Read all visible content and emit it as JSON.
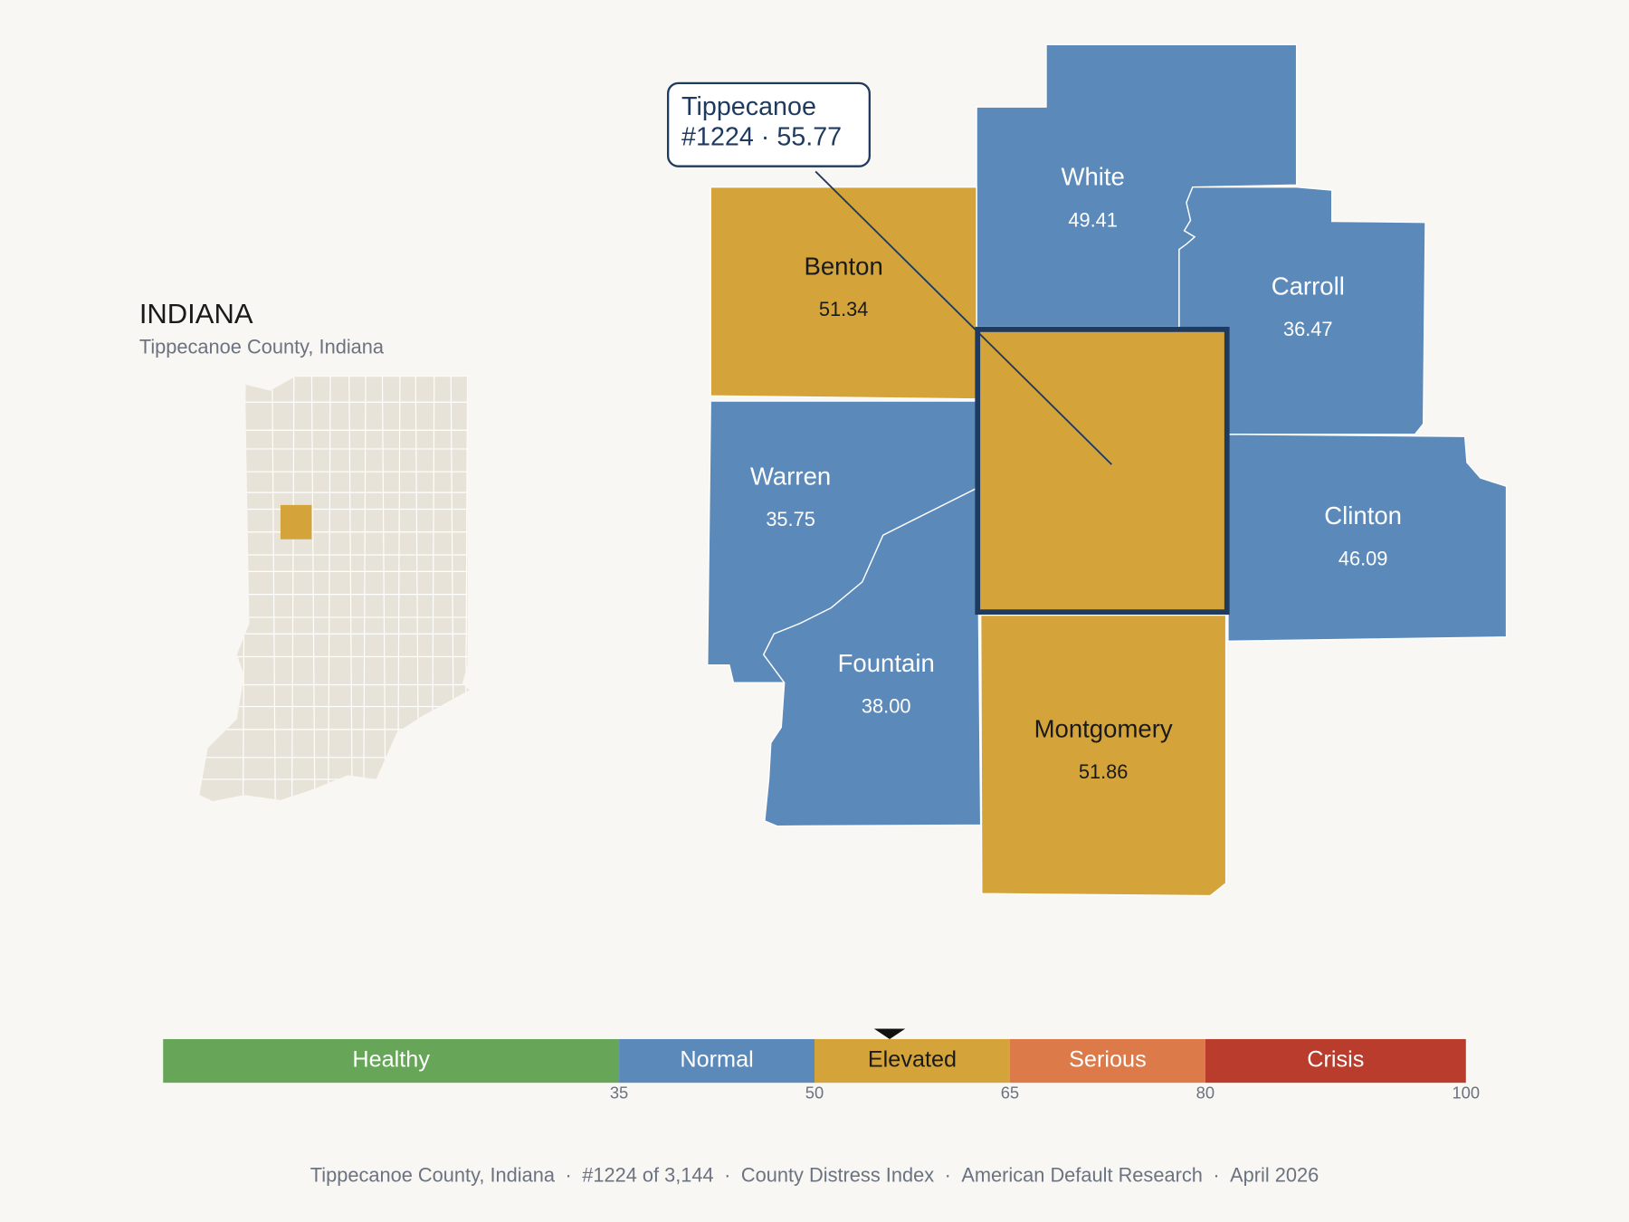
{
  "title": "INDIANA",
  "subtitle": "Tippecanoe County, Indiana",
  "highlight": {
    "name": "Tippecanoe",
    "detail": "#1224 · 55.77",
    "color": "#d4a43a",
    "border": "#1f3a5f"
  },
  "counties": [
    {
      "name": "White",
      "score": "49.41",
      "color": "#5b8aba",
      "text_color": "#ffffff"
    },
    {
      "name": "Carroll",
      "score": "36.47",
      "color": "#5b8aba",
      "text_color": "#ffffff"
    },
    {
      "name": "Clinton",
      "score": "46.09",
      "color": "#5b8aba",
      "text_color": "#ffffff"
    },
    {
      "name": "Benton",
      "score": "51.34",
      "color": "#d4a43a",
      "text_color": "#1a1a1a"
    },
    {
      "name": "Warren",
      "score": "35.75",
      "color": "#5b8aba",
      "text_color": "#ffffff"
    },
    {
      "name": "Fountain",
      "score": "38.00",
      "color": "#5b8aba",
      "text_color": "#ffffff"
    },
    {
      "name": "Montgomery",
      "score": "51.86",
      "color": "#d4a43a",
      "text_color": "#1a1a1a"
    }
  ],
  "scale": {
    "range": [
      0,
      100
    ],
    "ticks": [
      35,
      50,
      65,
      80,
      100
    ],
    "marker": 55.77,
    "bands": [
      {
        "label": "Healthy",
        "color": "#67a659",
        "text_color": "#ffffff"
      },
      {
        "label": "Normal",
        "color": "#5b8aba",
        "text_color": "#ffffff"
      },
      {
        "label": "Elevated",
        "color": "#d4a43a",
        "text_color": "#1a1a1a"
      },
      {
        "label": "Serious",
        "color": "#dc7a4a",
        "text_color": "#ffffff"
      },
      {
        "label": "Crisis",
        "color": "#b93c2c",
        "text_color": "#ffffff"
      }
    ]
  },
  "footer": {
    "separator": "·",
    "items": [
      "Tippecanoe County, Indiana",
      "#1224 of 3,144",
      "County Distress Index",
      "American Default Research",
      "April 2026"
    ]
  }
}
